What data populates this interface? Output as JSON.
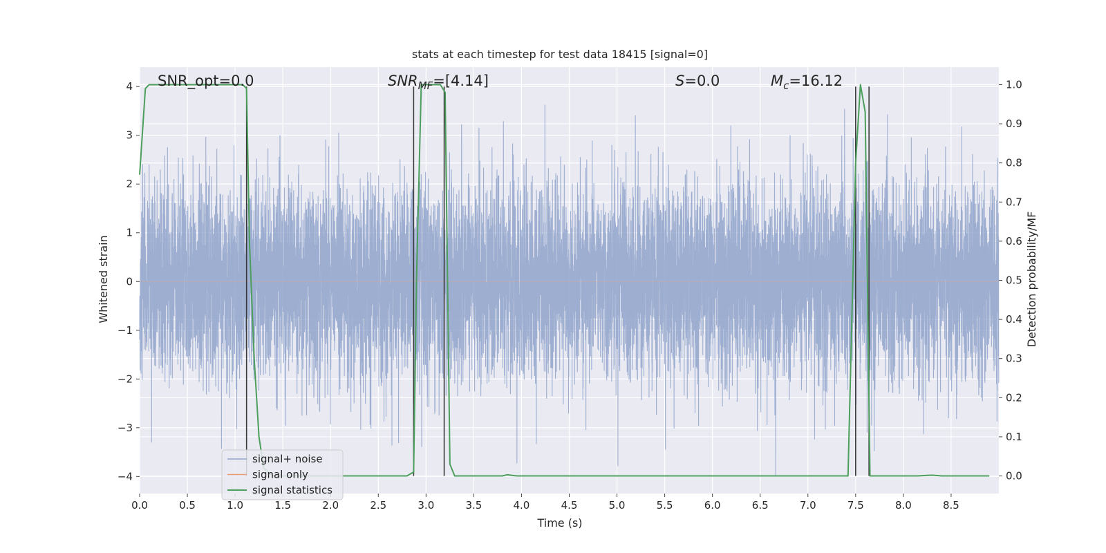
{
  "chart_data": {
    "type": "line",
    "title": "stats at each timestep for test data 18415 [signal=0]",
    "xlabel": "Time (s)",
    "ylabel_left": "Whitened strain",
    "ylabel_right": "Detection probability/MF",
    "xlim": [
      0,
      9.0
    ],
    "ylim_left": [
      -4.35,
      4.4
    ],
    "ylim_right": [
      -0.045,
      1.045
    ],
    "x_ticks": [
      "0.0",
      "0.5",
      "1.0",
      "1.5",
      "2.0",
      "2.5",
      "3.0",
      "3.5",
      "4.0",
      "4.5",
      "5.0",
      "5.5",
      "6.0",
      "6.5",
      "7.0",
      "7.5",
      "8.0",
      "8.5"
    ],
    "y_ticks_left": [
      "4",
      "3",
      "2",
      "1",
      "0",
      "−1",
      "−2",
      "−3",
      "−4"
    ],
    "y_ticks_right": [
      "1.0",
      "0.9",
      "0.8",
      "0.7",
      "0.6",
      "0.5",
      "0.4",
      "0.3",
      "0.2",
      "0.1",
      "0.0"
    ],
    "grid": true,
    "legend_position": "lower-left",
    "annotations": [
      {
        "id": "snr_opt",
        "text": "SNR_opt=0.0"
      },
      {
        "id": "snr_mf",
        "text": "SNR",
        "sub": "MF",
        "suffix": "=[4.14]"
      },
      {
        "id": "s",
        "text": "S",
        "suffix": "=0.0"
      },
      {
        "id": "mc",
        "text": "M",
        "sub": "c",
        "suffix": "=16.12"
      }
    ],
    "series": [
      {
        "name": "signal+ noise",
        "color": "#8fa3cb",
        "axis": "left",
        "kind": "noise",
        "sample_rate_hz": 1024,
        "std": 1.0,
        "range": [
          -4.0,
          4.0
        ]
      },
      {
        "name": "signal only",
        "color": "#e99a77",
        "axis": "left",
        "kind": "flat",
        "values": 0
      },
      {
        "name": "signal statistics",
        "color": "#4c9e5c",
        "axis": "right",
        "x": [
          0.0,
          0.06,
          0.1,
          0.15,
          0.2,
          0.25,
          0.3,
          0.4,
          0.5,
          0.6,
          0.7,
          0.8,
          0.9,
          1.0,
          1.05,
          1.08,
          1.12,
          1.15,
          1.2,
          1.25,
          1.3,
          1.4,
          1.5,
          1.7,
          1.9,
          2.1,
          2.3,
          2.35,
          2.5,
          2.7,
          2.8,
          2.87,
          2.9,
          2.95,
          2.98,
          3.0,
          3.05,
          3.1,
          3.15,
          3.2,
          3.25,
          3.3,
          3.4,
          3.5,
          3.6,
          3.7,
          3.8,
          3.85,
          3.95,
          4.0,
          4.5,
          5.0,
          5.5,
          6.0,
          6.5,
          7.0,
          7.3,
          7.42,
          7.5,
          7.55,
          7.6,
          7.65,
          7.7,
          7.8,
          8.0,
          8.15,
          8.3,
          8.4,
          8.6,
          8.9
        ],
        "y": [
          0.77,
          0.99,
          1.0,
          1.0,
          1.0,
          1.0,
          1.0,
          1.0,
          1.0,
          1.0,
          1.0,
          1.0,
          1.0,
          1.0,
          1.0,
          1.0,
          0.99,
          0.6,
          0.3,
          0.1,
          0.02,
          0.0,
          0.0,
          0.0,
          0.0,
          0.0,
          0.0,
          0.0,
          0.0,
          0.0,
          0.0,
          0.01,
          0.5,
          1.0,
          1.0,
          1.0,
          1.0,
          1.0,
          1.0,
          0.98,
          0.03,
          0.0,
          0.0,
          0.0,
          0.0,
          0.0,
          0.0,
          0.003,
          0.0,
          0.0,
          0.0,
          0.0,
          0.0,
          0.0,
          0.0,
          0.0,
          0.0,
          0.0,
          0.8,
          1.0,
          0.93,
          0.0,
          0.0,
          0.0,
          0.0,
          0.0,
          0.002,
          0.0,
          0.0,
          0.0
        ]
      }
    ],
    "vertical_lines": {
      "color": "#3a3a3a",
      "x": [
        1.12,
        2.87,
        3.19,
        7.5,
        7.64
      ]
    }
  }
}
